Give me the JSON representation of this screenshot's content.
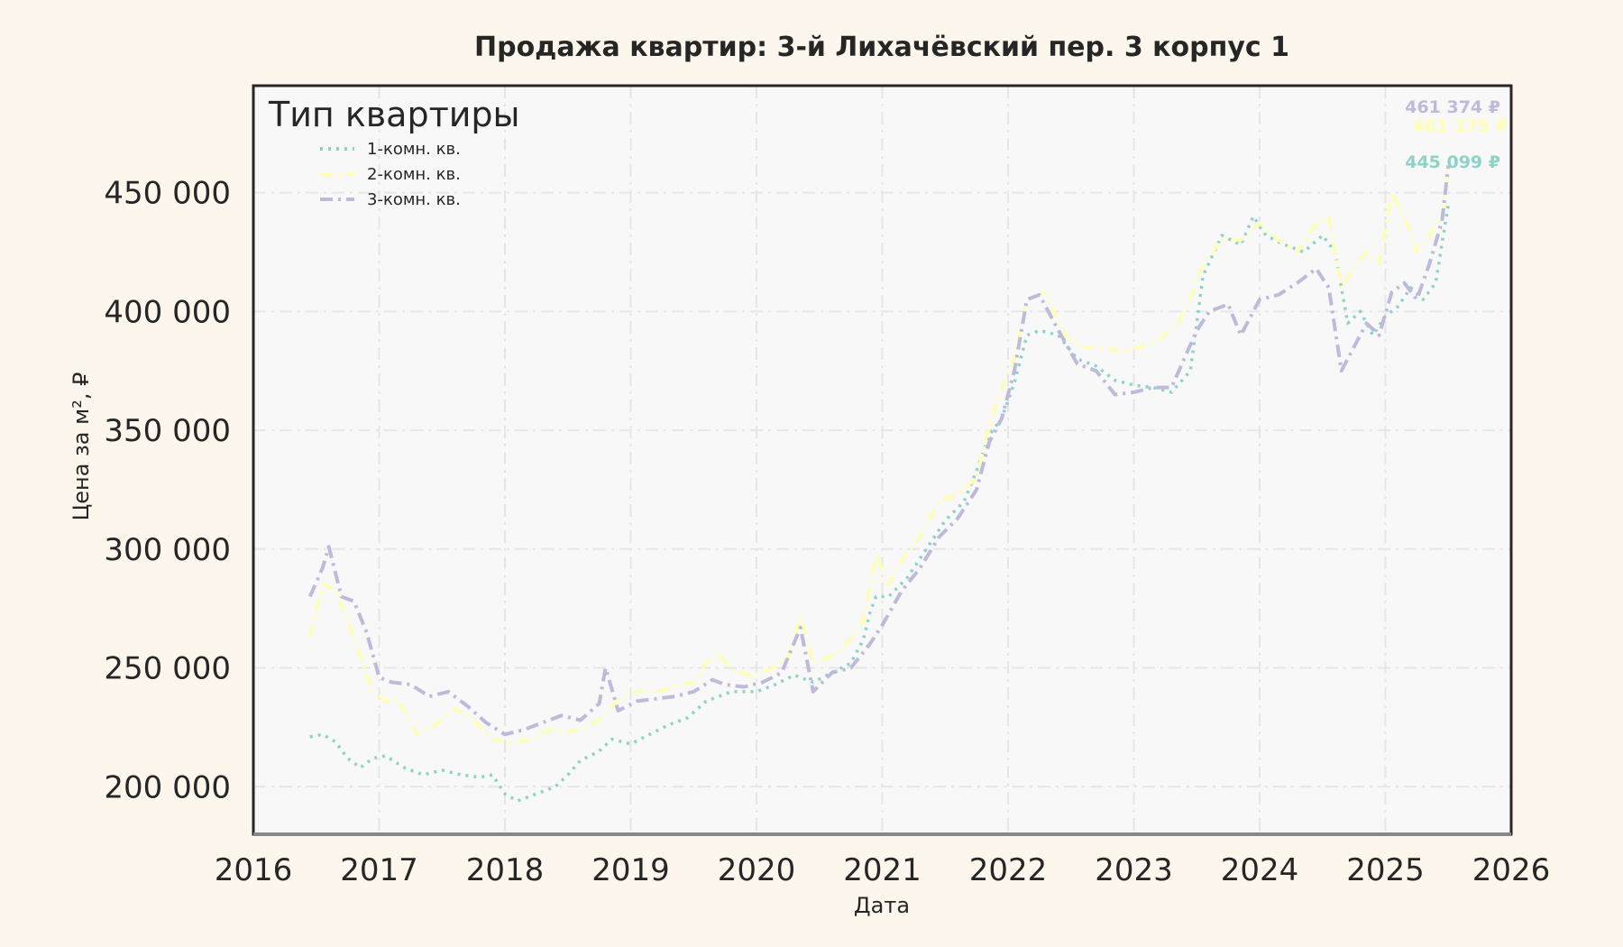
{
  "chart_data": {
    "type": "line",
    "title": "Продажа квартир: 3-й Лихачёвский пер. 3 корпус 1",
    "xlabel": "Дата",
    "ylabel": "Цена за м², ₽",
    "xlim": [
      2016,
      2026
    ],
    "ylim": [
      180000,
      495000
    ],
    "x_ticks": [
      2016,
      2017,
      2018,
      2019,
      2020,
      2021,
      2022,
      2023,
      2024,
      2025,
      2026
    ],
    "x_tick_labels": [
      "2016",
      "2017",
      "2018",
      "2019",
      "2020",
      "2021",
      "2022",
      "2023",
      "2024",
      "2025",
      "2026"
    ],
    "y_ticks": [
      200000,
      250000,
      300000,
      350000,
      400000,
      450000
    ],
    "y_tick_labels": [
      "200 000",
      "250 000",
      "300 000",
      "350 000",
      "400 000",
      "450 000"
    ],
    "grid": true,
    "legend": {
      "title": "Тип квартиры",
      "placement": "top-left",
      "entries": [
        "1-комн. кв.",
        "2-комн. кв.",
        "3-комн. кв."
      ]
    },
    "series": [
      {
        "name": "1-комн. кв.",
        "color": "#8dd3c7",
        "style": "dotted",
        "end_label": "445 099 ₽",
        "points": [
          [
            2016.45,
            221000
          ],
          [
            2016.55,
            222000
          ],
          [
            2016.65,
            219000
          ],
          [
            2016.75,
            212000
          ],
          [
            2016.85,
            208000
          ],
          [
            2016.95,
            212000
          ],
          [
            2017.05,
            213000
          ],
          [
            2017.2,
            208000
          ],
          [
            2017.35,
            205000
          ],
          [
            2017.5,
            207000
          ],
          [
            2017.65,
            205000
          ],
          [
            2017.8,
            204000
          ],
          [
            2017.9,
            205000
          ],
          [
            2018.0,
            197000
          ],
          [
            2018.1,
            194000
          ],
          [
            2018.25,
            197000
          ],
          [
            2018.4,
            200000
          ],
          [
            2018.5,
            205000
          ],
          [
            2018.6,
            211000
          ],
          [
            2018.75,
            215000
          ],
          [
            2018.85,
            220000
          ],
          [
            2019.0,
            218000
          ],
          [
            2019.15,
            222000
          ],
          [
            2019.3,
            226000
          ],
          [
            2019.45,
            229000
          ],
          [
            2019.6,
            236000
          ],
          [
            2019.8,
            240000
          ],
          [
            2020.0,
            240000
          ],
          [
            2020.15,
            243000
          ],
          [
            2020.3,
            247000
          ],
          [
            2020.45,
            244000
          ],
          [
            2020.6,
            248000
          ],
          [
            2020.75,
            252000
          ],
          [
            2020.85,
            262000
          ],
          [
            2020.9,
            273000
          ],
          [
            2020.95,
            280000
          ],
          [
            2021.05,
            280000
          ],
          [
            2021.2,
            288000
          ],
          [
            2021.35,
            300000
          ],
          [
            2021.5,
            312000
          ],
          [
            2021.65,
            320000
          ],
          [
            2021.75,
            333000
          ],
          [
            2021.85,
            348000
          ],
          [
            2021.95,
            355000
          ],
          [
            2022.05,
            370000
          ],
          [
            2022.15,
            390000
          ],
          [
            2022.25,
            392000
          ],
          [
            2022.4,
            390000
          ],
          [
            2022.55,
            380000
          ],
          [
            2022.7,
            377000
          ],
          [
            2022.85,
            371000
          ],
          [
            2023.0,
            369000
          ],
          [
            2023.15,
            368000
          ],
          [
            2023.3,
            366000
          ],
          [
            2023.45,
            375000
          ],
          [
            2023.55,
            415000
          ],
          [
            2023.7,
            432000
          ],
          [
            2023.85,
            428000
          ],
          [
            2023.95,
            440000
          ],
          [
            2024.05,
            432000
          ],
          [
            2024.2,
            428000
          ],
          [
            2024.35,
            425000
          ],
          [
            2024.5,
            432000
          ],
          [
            2024.6,
            425000
          ],
          [
            2024.7,
            395000
          ],
          [
            2024.8,
            400000
          ],
          [
            2024.9,
            390000
          ],
          [
            2025.0,
            398000
          ],
          [
            2025.1,
            402000
          ],
          [
            2025.2,
            410000
          ],
          [
            2025.3,
            405000
          ],
          [
            2025.4,
            412000
          ],
          [
            2025.5,
            445099
          ]
        ]
      },
      {
        "name": "2-комн. кв.",
        "color": "#ffffb3",
        "style": "dashdot",
        "end_label": "461 175 ₽",
        "points": [
          [
            2016.45,
            263000
          ],
          [
            2016.55,
            285000
          ],
          [
            2016.65,
            283000
          ],
          [
            2016.75,
            270000
          ],
          [
            2016.85,
            255000
          ],
          [
            2016.95,
            240000
          ],
          [
            2017.05,
            236000
          ],
          [
            2017.15,
            237000
          ],
          [
            2017.3,
            222000
          ],
          [
            2017.45,
            226000
          ],
          [
            2017.6,
            233000
          ],
          [
            2017.75,
            228000
          ],
          [
            2017.9,
            220000
          ],
          [
            2018.05,
            218000
          ],
          [
            2018.2,
            220000
          ],
          [
            2018.35,
            224000
          ],
          [
            2018.5,
            223000
          ],
          [
            2018.65,
            225000
          ],
          [
            2018.8,
            230000
          ],
          [
            2018.9,
            237000
          ],
          [
            2019.05,
            240000
          ],
          [
            2019.2,
            240000
          ],
          [
            2019.35,
            242000
          ],
          [
            2019.5,
            244000
          ],
          [
            2019.6,
            252000
          ],
          [
            2019.7,
            256000
          ],
          [
            2019.8,
            249000
          ],
          [
            2019.95,
            247000
          ],
          [
            2020.1,
            249000
          ],
          [
            2020.25,
            254000
          ],
          [
            2020.35,
            272000
          ],
          [
            2020.45,
            252000
          ],
          [
            2020.6,
            255000
          ],
          [
            2020.75,
            262000
          ],
          [
            2020.85,
            270000
          ],
          [
            2020.95,
            298000
          ],
          [
            2021.05,
            285000
          ],
          [
            2021.15,
            295000
          ],
          [
            2021.3,
            305000
          ],
          [
            2021.45,
            320000
          ],
          [
            2021.6,
            323000
          ],
          [
            2021.75,
            330000
          ],
          [
            2021.85,
            352000
          ],
          [
            2021.95,
            368000
          ],
          [
            2022.05,
            380000
          ],
          [
            2022.15,
            405000
          ],
          [
            2022.3,
            408000
          ],
          [
            2022.45,
            390000
          ],
          [
            2022.6,
            385000
          ],
          [
            2022.75,
            385000
          ],
          [
            2022.9,
            383000
          ],
          [
            2023.05,
            385000
          ],
          [
            2023.2,
            388000
          ],
          [
            2023.35,
            395000
          ],
          [
            2023.45,
            405000
          ],
          [
            2023.55,
            420000
          ],
          [
            2023.7,
            430000
          ],
          [
            2023.85,
            430000
          ],
          [
            2024.0,
            437000
          ],
          [
            2024.15,
            430000
          ],
          [
            2024.3,
            425000
          ],
          [
            2024.45,
            437000
          ],
          [
            2024.55,
            440000
          ],
          [
            2024.65,
            410000
          ],
          [
            2024.75,
            418000
          ],
          [
            2024.85,
            425000
          ],
          [
            2024.95,
            420000
          ],
          [
            2025.05,
            450000
          ],
          [
            2025.15,
            440000
          ],
          [
            2025.25,
            425000
          ],
          [
            2025.35,
            432000
          ],
          [
            2025.45,
            440000
          ],
          [
            2025.5,
            461175
          ]
        ]
      },
      {
        "name": "3-комн. кв.",
        "color": "#bebada",
        "style": "dashdot",
        "end_label": "461 374 ₽",
        "points": [
          [
            2016.45,
            280000
          ],
          [
            2016.55,
            292000
          ],
          [
            2016.6,
            301000
          ],
          [
            2016.7,
            280000
          ],
          [
            2016.8,
            278000
          ],
          [
            2016.9,
            265000
          ],
          [
            2017.0,
            246000
          ],
          [
            2017.1,
            244000
          ],
          [
            2017.25,
            243000
          ],
          [
            2017.4,
            238000
          ],
          [
            2017.55,
            240000
          ],
          [
            2017.7,
            234000
          ],
          [
            2017.85,
            227000
          ],
          [
            2018.0,
            222000
          ],
          [
            2018.15,
            224000
          ],
          [
            2018.3,
            227000
          ],
          [
            2018.45,
            230000
          ],
          [
            2018.6,
            228000
          ],
          [
            2018.75,
            235000
          ],
          [
            2018.8,
            250000
          ],
          [
            2018.9,
            232000
          ],
          [
            2019.05,
            236000
          ],
          [
            2019.2,
            237000
          ],
          [
            2019.35,
            238000
          ],
          [
            2019.5,
            240000
          ],
          [
            2019.65,
            245000
          ],
          [
            2019.75,
            243000
          ],
          [
            2019.9,
            242000
          ],
          [
            2020.05,
            244000
          ],
          [
            2020.2,
            248000
          ],
          [
            2020.35,
            267000
          ],
          [
            2020.45,
            240000
          ],
          [
            2020.6,
            248000
          ],
          [
            2020.75,
            250000
          ],
          [
            2020.9,
            260000
          ],
          [
            2021.0,
            268000
          ],
          [
            2021.15,
            282000
          ],
          [
            2021.3,
            292000
          ],
          [
            2021.45,
            305000
          ],
          [
            2021.6,
            313000
          ],
          [
            2021.75,
            325000
          ],
          [
            2021.85,
            345000
          ],
          [
            2021.95,
            355000
          ],
          [
            2022.05,
            375000
          ],
          [
            2022.15,
            405000
          ],
          [
            2022.25,
            407000
          ],
          [
            2022.4,
            392000
          ],
          [
            2022.55,
            378000
          ],
          [
            2022.7,
            375000
          ],
          [
            2022.85,
            365000
          ],
          [
            2023.0,
            366000
          ],
          [
            2023.15,
            368000
          ],
          [
            2023.3,
            368000
          ],
          [
            2023.4,
            380000
          ],
          [
            2023.5,
            392000
          ],
          [
            2023.6,
            400000
          ],
          [
            2023.75,
            403000
          ],
          [
            2023.85,
            390000
          ],
          [
            2024.0,
            405000
          ],
          [
            2024.15,
            407000
          ],
          [
            2024.3,
            412000
          ],
          [
            2024.45,
            418000
          ],
          [
            2024.55,
            410000
          ],
          [
            2024.65,
            375000
          ],
          [
            2024.75,
            385000
          ],
          [
            2024.85,
            395000
          ],
          [
            2024.95,
            390000
          ],
          [
            2025.05,
            408000
          ],
          [
            2025.15,
            412000
          ],
          [
            2025.25,
            405000
          ],
          [
            2025.35,
            420000
          ],
          [
            2025.45,
            438000
          ],
          [
            2025.5,
            461374
          ]
        ]
      }
    ]
  }
}
